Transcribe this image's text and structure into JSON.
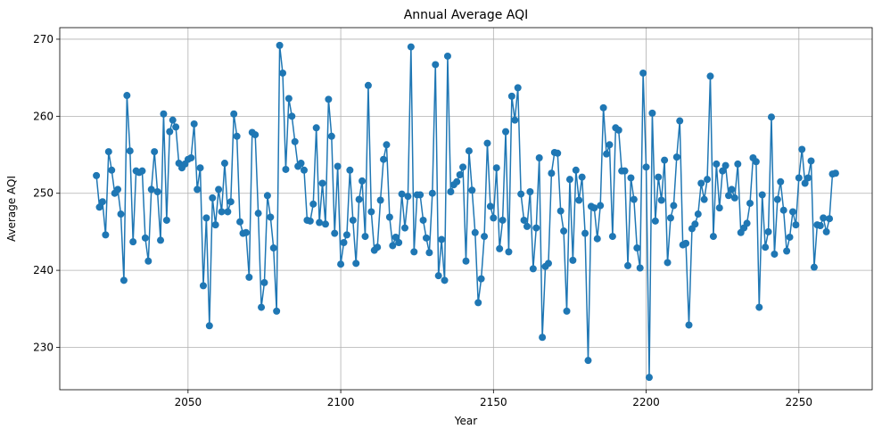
{
  "chart_data": {
    "type": "line",
    "title": "Annual Average AQI",
    "xlabel": "Year",
    "ylabel": "Average AQI",
    "xlim": [
      2008,
      2274
    ],
    "ylim": [
      224.5,
      271.5
    ],
    "x_ticks": [
      2050,
      2100,
      2150,
      2200,
      2250
    ],
    "y_ticks": [
      230,
      240,
      250,
      260,
      270
    ],
    "grid": true,
    "legend": "none",
    "series": [
      {
        "color": "#1f77b4",
        "marker": "circle",
        "x_start": 2020,
        "values": [
          252.3,
          248.2,
          248.9,
          244.6,
          255.4,
          253.0,
          250.0,
          250.5,
          247.3,
          238.7,
          262.7,
          255.5,
          243.7,
          252.9,
          252.7,
          252.9,
          244.2,
          241.2,
          250.5,
          255.4,
          250.2,
          243.9,
          260.3,
          246.5,
          258.0,
          259.5,
          258.6,
          253.9,
          253.3,
          253.8,
          254.4,
          254.6,
          259.0,
          250.5,
          253.3,
          238.0,
          246.8,
          232.8,
          249.4,
          245.9,
          250.5,
          247.6,
          253.9,
          247.6,
          248.9,
          260.3,
          257.4,
          246.3,
          244.8,
          244.9,
          239.1,
          257.9,
          257.6,
          247.4,
          235.2,
          238.4,
          249.7,
          246.9,
          242.9,
          234.7,
          269.2,
          265.6,
          253.1,
          262.3,
          260.0,
          256.7,
          253.5,
          253.9,
          253.0,
          246.5,
          246.4,
          248.6,
          258.5,
          246.2,
          251.3,
          246.0,
          262.2,
          257.4,
          244.8,
          253.5,
          240.8,
          243.6,
          244.6,
          253.0,
          246.5,
          240.9,
          249.2,
          251.6,
          244.4,
          264.0,
          247.6,
          242.6,
          243.0,
          249.1,
          254.4,
          256.3,
          246.9,
          243.2,
          244.3,
          243.6,
          249.9,
          245.5,
          249.6,
          269.0,
          242.4,
          249.8,
          249.8,
          246.5,
          244.2,
          242.3,
          250.0,
          266.7,
          239.3,
          244.0,
          238.7,
          267.8,
          250.2,
          251.1,
          251.5,
          252.4,
          253.4,
          241.2,
          255.5,
          250.4,
          244.9,
          235.8,
          238.9,
          244.4,
          256.5,
          248.3,
          246.8,
          253.3,
          242.8,
          246.5,
          258.0,
          242.4,
          262.6,
          259.5,
          263.7,
          249.9,
          246.5,
          245.7,
          250.2,
          240.2,
          245.5,
          254.6,
          231.3,
          240.5,
          240.9,
          252.6,
          255.3,
          255.2,
          247.7,
          245.1,
          234.7,
          251.8,
          241.3,
          253.0,
          249.1,
          252.1,
          244.8,
          228.3,
          248.3,
          248.1,
          244.1,
          248.4,
          261.1,
          255.1,
          256.3,
          244.4,
          258.5,
          258.2,
          252.9,
          252.9,
          240.6,
          252.0,
          249.2,
          242.9,
          240.3,
          265.6,
          253.4,
          226.1,
          260.4,
          246.4,
          252.1,
          249.1,
          254.3,
          241.0,
          246.8,
          248.4,
          254.7,
          259.4,
          243.3,
          243.5,
          232.9,
          245.4,
          246.0,
          247.3,
          251.3,
          249.2,
          251.8,
          265.2,
          244.4,
          253.8,
          248.1,
          252.9,
          253.6,
          249.7,
          250.5,
          249.4,
          253.8,
          244.9,
          245.5,
          246.1,
          248.7,
          254.6,
          254.1,
          235.2,
          249.8,
          243.0,
          245.0,
          259.9,
          242.1,
          249.2,
          251.5,
          247.8,
          242.5,
          244.3,
          247.6,
          245.9,
          252.0,
          255.7,
          251.3,
          252.0,
          254.2,
          240.4,
          245.9,
          245.8,
          246.8,
          245.0,
          246.7,
          252.5,
          252.6
        ]
      }
    ]
  }
}
